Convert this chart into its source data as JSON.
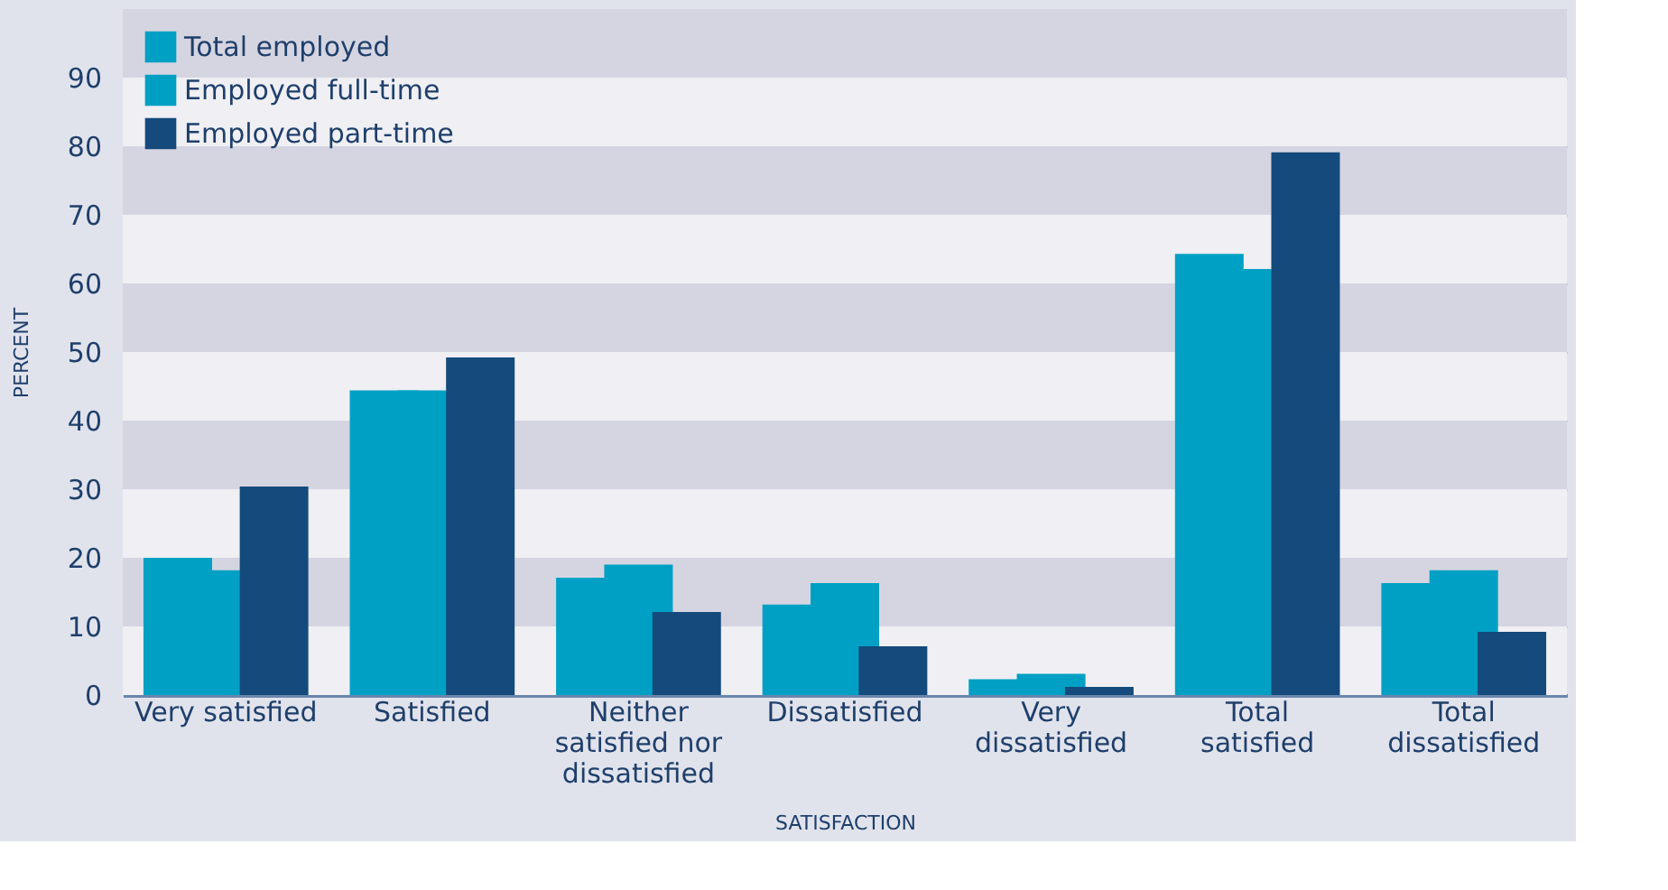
{
  "chart_data": {
    "type": "bar",
    "xlabel": "SATISFACTION",
    "ylabel": "PERCENT",
    "categories": [
      "Very satisfied",
      "Satisfied",
      "Neither satisfied nor dissatisfied",
      "Dissatisfied",
      "Very dissatisfied",
      "Total satisfied",
      "Total dissatisfied"
    ],
    "series": [
      {
        "name": "Total employed",
        "color": "#00a0c4",
        "values": [
          20.0,
          44.4,
          17.1,
          13.2,
          2.3,
          64.3,
          16.3
        ]
      },
      {
        "name": "Employed full-time",
        "color": "#00a0c4",
        "values": [
          18.2,
          44.4,
          19.0,
          16.3,
          3.1,
          62.1,
          18.2
        ]
      },
      {
        "name": "Employed part-time",
        "color": "#154a7c",
        "values": [
          30.4,
          49.2,
          12.1,
          7.1,
          1.2,
          79.1,
          9.2
        ]
      }
    ],
    "ylim": [
      0,
      100
    ],
    "yticks": [
      0,
      10,
      20,
      30,
      40,
      50,
      60,
      70,
      80,
      90
    ],
    "grid": true,
    "legend": "top left"
  }
}
